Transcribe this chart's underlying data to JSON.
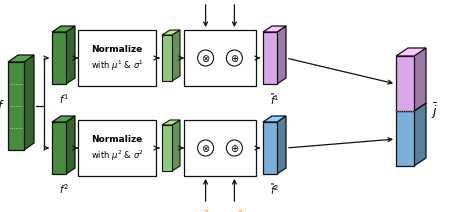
{
  "bg_color": "#ffffff",
  "fig_width": 4.53,
  "fig_height": 2.12,
  "green_dark": "#4a8c3f",
  "green_light": "#8fca7a",
  "purple": "#d8a8e8",
  "blue": "#7ab0d9",
  "red_color": "#ff0000",
  "orange_color": "#ff8c00",
  "box_edge": "#111111",
  "arrow_color": "#111111"
}
